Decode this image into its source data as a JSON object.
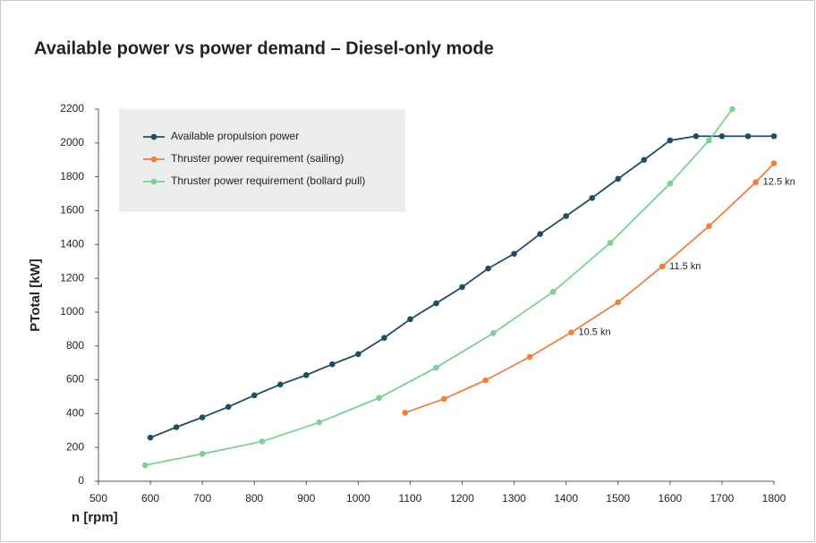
{
  "chart_data": {
    "type": "line",
    "title": "Available power vs power demand – Diesel-only mode",
    "x_label": "n [rpm]",
    "y_label": "PTotal [kW]",
    "xlim": [
      500,
      1800
    ],
    "xticks": [
      500,
      600,
      700,
      800,
      900,
      1000,
      1100,
      1200,
      1300,
      1400,
      1500,
      1600,
      1700,
      1800
    ],
    "ylim": [
      0,
      2200
    ],
    "yticks": [
      0,
      200,
      400,
      600,
      800,
      1000,
      1200,
      1400,
      1600,
      1800,
      2000,
      2200
    ],
    "series": [
      {
        "name": "Available propulsion power",
        "color": "#1f4e63",
        "x": [
          600,
          650,
          700,
          750,
          800,
          850,
          900,
          950,
          1000,
          1050,
          1100,
          1150,
          1200,
          1250,
          1300,
          1350,
          1400,
          1450,
          1500,
          1550,
          1600,
          1650,
          1700,
          1750,
          1800
        ],
        "values": [
          258,
          320,
          378,
          440,
          508,
          572,
          628,
          692,
          752,
          848,
          958,
          1052,
          1148,
          1258,
          1345,
          1462,
          1568,
          1675,
          1788,
          1900,
          2015,
          2040,
          2040,
          2040,
          2040
        ]
      },
      {
        "name": "Thruster power requirement (sailing)",
        "color": "#f07f3c",
        "x": [
          1090,
          1165,
          1245,
          1330,
          1410,
          1500,
          1585,
          1675,
          1765,
          1800
        ],
        "values": [
          405,
          487,
          597,
          735,
          880,
          1058,
          1270,
          1508,
          1768,
          1880
        ]
      },
      {
        "name": "Thruster power requirement (bollard pull)",
        "color": "#7dcf94",
        "x": [
          590,
          700,
          815,
          925,
          1040,
          1150,
          1260,
          1375,
          1485,
          1600,
          1675,
          1720
        ],
        "values": [
          95,
          162,
          235,
          348,
          493,
          672,
          876,
          1120,
          1410,
          1760,
          2015,
          2200
        ]
      }
    ],
    "annotations": [
      {
        "text": "10.5 kn",
        "x": 1410,
        "y": 880
      },
      {
        "text": "11.5 kn",
        "x": 1585,
        "y": 1270
      },
      {
        "text": "12.5 kn",
        "x": 1765,
        "y": 1768
      }
    ],
    "grid": false
  }
}
